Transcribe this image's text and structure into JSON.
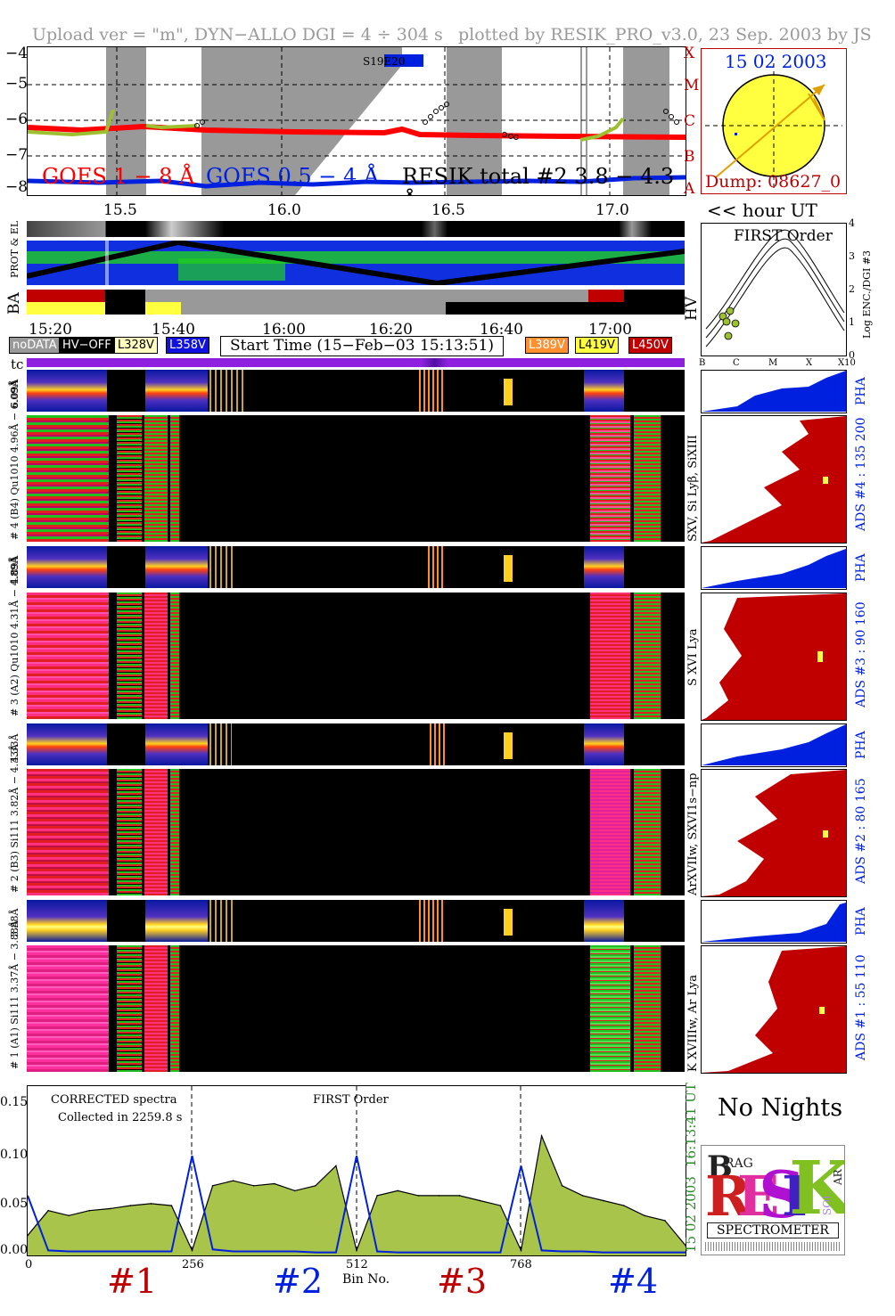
{
  "header": {
    "left": "Upload ver = \"m\", DYN−ALLO DGI =   4 ÷ 304 s",
    "right": "plotted by RESIK_PRO_v3.0, 23 Sep. 2003 by JS"
  },
  "goes": {
    "ylabels": [
      "−4",
      "−5",
      "−6",
      "−7",
      "−8"
    ],
    "classes": [
      "X",
      "M",
      "C",
      "B",
      "A"
    ],
    "legend_red": "GOES 1 − 8 Å",
    "legend_blue": "GOES 0.5 − 4 Å",
    "legend_black": "RESIK total #2  3.8 − 4.3 Å",
    "xticks": [
      "15.5",
      "16.0",
      "16.5",
      "17.0"
    ],
    "tag": "S19E20",
    "colors": {
      "red": "#ff0000",
      "blue": "#0020e0",
      "green": "#9dc030",
      "gray": "#999999"
    }
  },
  "sun": {
    "date": "15 02 2003",
    "dump": "Dump: 08627_0",
    "hour_label": "<< hour UT"
  },
  "status": {
    "side_ba": "BA",
    "side_prot": "PROT & EL",
    "side_hv": "HV",
    "time_ticks": [
      "15:20",
      "15:40",
      "16:00",
      "16:20",
      "16:40",
      "17:00"
    ],
    "start_time": "Start Time (15−Feb−03 15:13:51)",
    "legend": [
      {
        "label": "noDATA",
        "bg": "#999999",
        "fg": "#ffffff"
      },
      {
        "label": "HV−OFF",
        "bg": "#000000",
        "fg": "#ffffff"
      },
      {
        "label": "L328V",
        "bg": "#ffffc0",
        "fg": "#000000"
      },
      {
        "label": "L358V",
        "bg": "#1010e0",
        "fg": "#ffffff"
      },
      {
        "label": "L389V",
        "bg": "#ff9030",
        "fg": "#ffffff"
      },
      {
        "label": "L419V",
        "bg": "#ffff40",
        "fg": "#000000"
      },
      {
        "label": "L450V",
        "bg": "#c00000",
        "fg": "#ffffff"
      }
    ],
    "tc": "tc"
  },
  "first_order": {
    "title": "FIRST Order",
    "ylabel": "Log ENC./DGI #3",
    "yticks": [
      "4",
      "3",
      "2",
      "1",
      "0"
    ],
    "xticks": [
      "B",
      "C",
      "M",
      "X",
      "X10"
    ]
  },
  "channels": [
    {
      "pha_label": "6.09Å",
      "label": "# 4 (B4) Qu1010 4.96Å − 6.09Å",
      "side": "SXV, Si Lyβ, SiXIII",
      "ads": "ADS #4 :  135 200"
    },
    {
      "pha_label": "4.89Å",
      "label": "# 3 (A2) Qu1010 4.31Å − 4.89Å",
      "side": "S XVI Lya",
      "ads": "ADS #3 :   90 160"
    },
    {
      "pha_label": "4.33Å",
      "label": "# 2 (B3) Si111 3.82Å − 4.33Å",
      "side": "ArXVIIw, SXVI1s−np",
      "ads": "ADS #2 :   80 165"
    },
    {
      "pha_label": "3.88Å",
      "label": "# 1 (A1) Si111 3.37Å − 3.88Å",
      "side": "K XVIIIw, Ar Lya",
      "ads": "ADS #1 :   55 110"
    }
  ],
  "pha": "PHA",
  "spectrum": {
    "title1": "CORRECTED spectra",
    "title2": "Collected in  2259.8 s",
    "title3": "FIRST Order",
    "yticks": [
      "0.15",
      "0.10",
      "0.05",
      "0.00"
    ],
    "xticks": [
      "0",
      "256",
      "512",
      "768"
    ],
    "xlabel": "Bin No.",
    "side_time": "16:13:41 UT",
    "side_date": "15 02 2003",
    "channels": [
      "#1",
      "#2",
      "#3",
      "#4"
    ]
  },
  "no_nights": "No Nights",
  "logo": {
    "text": "SPECTROMETER",
    "b": "B",
    "rag": "RAG",
    "r": "R",
    "e": "E",
    "s": "S",
    "i": "I",
    "k": "K",
    "sol": "SOL",
    "ar": "AR"
  },
  "chart_data": {
    "type": "line",
    "title": "",
    "xlabel": "Bin No.",
    "ylabel": "",
    "ylim": [
      0,
      0.17
    ],
    "xlim": [
      0,
      1024
    ],
    "x": [
      0,
      32,
      64,
      96,
      128,
      160,
      192,
      224,
      256,
      288,
      320,
      352,
      384,
      416,
      448,
      480,
      512,
      544,
      576,
      608,
      640,
      672,
      704,
      736,
      768,
      800,
      832,
      864,
      896,
      928,
      960,
      992,
      1024
    ],
    "series": [
      {
        "name": "CORRECTED spectra",
        "values": [
          0.02,
          0.045,
          0.04,
          0.045,
          0.047,
          0.05,
          0.052,
          0.05,
          0.005,
          0.07,
          0.075,
          0.07,
          0.072,
          0.065,
          0.07,
          0.09,
          0.005,
          0.06,
          0.065,
          0.06,
          0.06,
          0.06,
          0.055,
          0.05,
          0.005,
          0.12,
          0.07,
          0.06,
          0.055,
          0.05,
          0.04,
          0.035,
          0.01
        ]
      },
      {
        "name": "",
        "values": [
          0.06,
          0.005,
          0.004,
          0.004,
          0.004,
          0.004,
          0.004,
          0.004,
          0.1,
          0.006,
          0.004,
          0.004,
          0.004,
          0.004,
          0.003,
          0.003,
          0.1,
          0.004,
          0.003,
          0.003,
          0.003,
          0.003,
          0.003,
          0.003,
          0.09,
          0.005,
          0.004,
          0.004,
          0.003,
          0.003,
          0.003,
          0.003,
          0.003
        ]
      }
    ]
  }
}
